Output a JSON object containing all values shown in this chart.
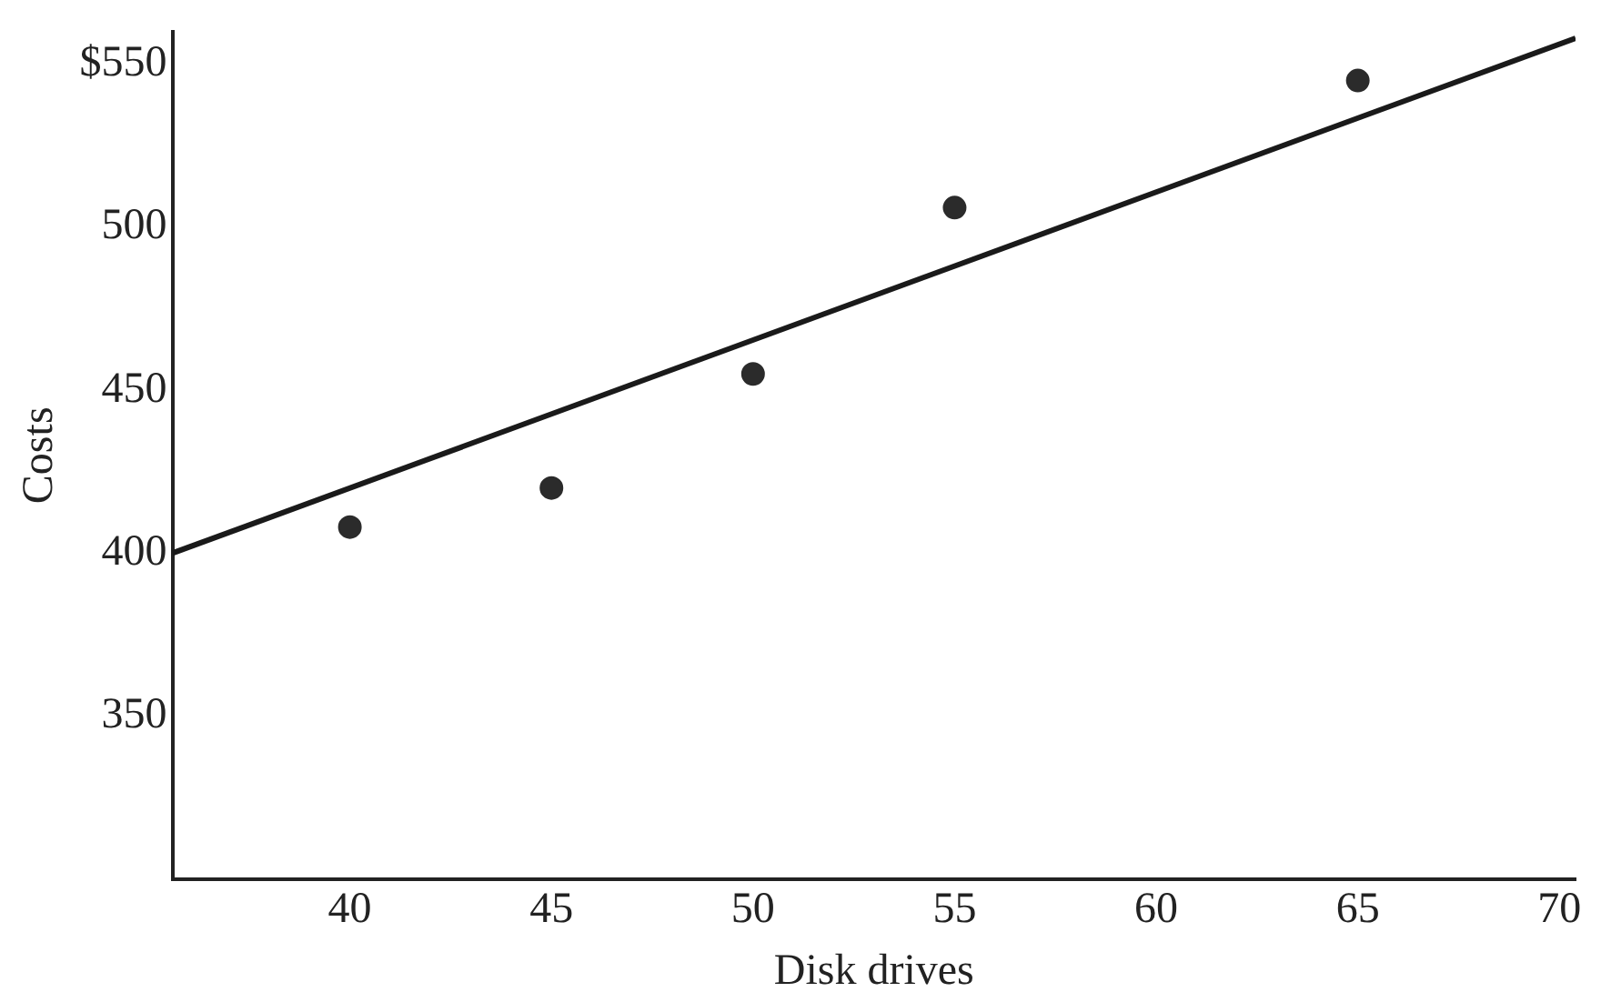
{
  "chart_data": {
    "type": "scatter",
    "xlabel": "Disk drives",
    "ylabel": "Costs",
    "xlim": [
      35.6,
      70.4
    ],
    "xticks": [
      40,
      45,
      50,
      55,
      60,
      65,
      70
    ],
    "ylim": [
      300,
      560
    ],
    "yticks": [
      350,
      400,
      450,
      500,
      {
        "value": 550,
        "label": "$550"
      }
    ],
    "grid": false,
    "legend": false,
    "series": [
      {
        "marker": "circle",
        "color": "#2b2b2b",
        "x": [
          40,
          45,
          50,
          55,
          65
        ],
        "values": [
          408,
          420,
          455,
          506,
          545
        ]
      },
      {
        "type": "line",
        "color": "#1a1a1a",
        "x": [
          35.6,
          70.4
        ],
        "values": [
          400,
          558
        ],
        "line_style": "solid",
        "marker": "none"
      }
    ]
  }
}
